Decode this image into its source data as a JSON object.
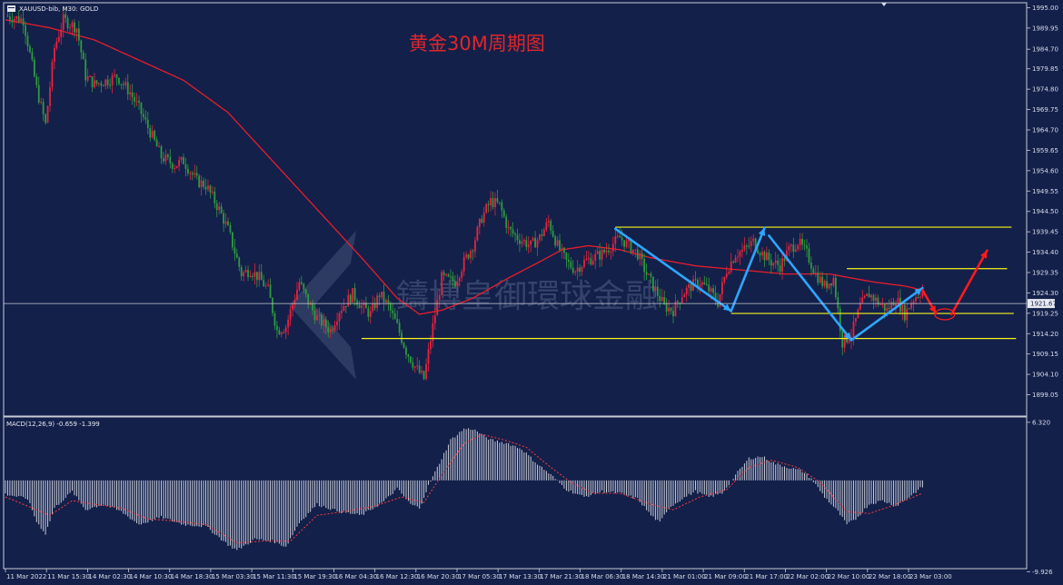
{
  "header": {
    "symbol_line": "XAUUSD-bib, M30: GOLD"
  },
  "annotation": {
    "title_text": "黄金30M周期图"
  },
  "watermark": {
    "text": "鑄博皇御環球金融"
  },
  "colors": {
    "background": "#13204a",
    "frame": "#c9ccd6",
    "bull_candle": "#e8233c",
    "bear_candle": "#2f9a3f",
    "moving_average": "#e81d2a",
    "support_resistance": "#f7f31b",
    "wave_arrow": "#2ea6ff",
    "forecast_arrow": "#ff1a1a",
    "macd_hist": "#c9ccd6",
    "macd_signal": "#ff3a3a"
  },
  "chart_data": [
    {
      "type": "line",
      "title": "",
      "price_scale": {
        "ylim": [
          1894.0,
          1996.0
        ],
        "ticks": [
          "1995.00",
          "1989.95",
          "1984.70",
          "1979.85",
          "1974.80",
          "1969.75",
          "1964.70",
          "1959.65",
          "1954.60",
          "1949.55",
          "1944.50",
          "1939.45",
          "1934.40",
          "1929.35",
          "1924.30",
          "1919.25",
          "1914.20",
          "1909.15",
          "1904.10",
          "1899.05"
        ],
        "tick_values": [
          1995.0,
          1989.95,
          1984.7,
          1979.85,
          1974.8,
          1969.75,
          1964.7,
          1959.65,
          1954.6,
          1949.55,
          1944.5,
          1939.45,
          1934.4,
          1929.35,
          1924.3,
          1919.25,
          1914.2,
          1909.15,
          1904.1,
          1899.05
        ],
        "current_price_label": "1921.67",
        "current_price": 1921.67
      },
      "time_scale": {
        "labels": [
          "11 Mar 2022",
          "11 Mar 15:30",
          "14 Mar 02:30",
          "14 Mar 10:30",
          "14 Mar 18:30",
          "15 Mar 03:30",
          "15 Mar 11:30",
          "15 Mar 19:30",
          "16 Mar 04:30",
          "16 Mar 12:30",
          "16 Mar 20:30",
          "17 Mar 05:30",
          "17 Mar 13:30",
          "17 Mar 21:30",
          "18 Mar 06:30",
          "18 Mar 14:30",
          "21 Mar 01:00",
          "21 Mar 09:00",
          "21 Mar 17:00",
          "22 Mar 02:00",
          "22 Mar 10:00",
          "22 Mar 18:00",
          "23 Mar 03:00"
        ],
        "bar_count": 222
      },
      "price_path_keypoints": [
        [
          0,
          1993
        ],
        [
          8,
          1992
        ],
        [
          14,
          1975
        ],
        [
          18,
          1966
        ],
        [
          22,
          1985
        ],
        [
          26,
          1992
        ],
        [
          32,
          1990
        ],
        [
          36,
          1978
        ],
        [
          40,
          1976
        ],
        [
          46,
          1977
        ],
        [
          50,
          1978
        ],
        [
          56,
          1974
        ],
        [
          60,
          1970
        ],
        [
          66,
          1963
        ],
        [
          70,
          1958
        ],
        [
          76,
          1956
        ],
        [
          80,
          1957
        ],
        [
          86,
          1952
        ],
        [
          90,
          1951
        ],
        [
          96,
          1945
        ],
        [
          100,
          1940
        ],
        [
          106,
          1929
        ],
        [
          110,
          1930
        ],
        [
          114,
          1928
        ],
        [
          118,
          1925
        ],
        [
          122,
          1915
        ],
        [
          126,
          1916
        ],
        [
          132,
          1927
        ],
        [
          136,
          1922
        ],
        [
          140,
          1918
        ],
        [
          146,
          1915
        ],
        [
          150,
          1920
        ],
        [
          156,
          1924
        ],
        [
          160,
          1921
        ],
        [
          164,
          1919
        ],
        [
          168,
          1924
        ],
        [
          172,
          1921
        ],
        [
          176,
          1916
        ],
        [
          180,
          1910
        ],
        [
          184,
          1906
        ],
        [
          188,
          1903
        ],
        [
          192,
          1916
        ],
        [
          196,
          1928
        ],
        [
          202,
          1927
        ],
        [
          206,
          1932
        ],
        [
          210,
          1936
        ],
        [
          214,
          1943
        ],
        [
          218,
          1947
        ],
        [
          222,
          1946
        ],
        [
          226,
          1940
        ],
        [
          230,
          1938
        ],
        [
          236,
          1936
        ],
        [
          240,
          1938
        ],
        [
          244,
          1942
        ],
        [
          248,
          1936
        ],
        [
          252,
          1932
        ],
        [
          256,
          1930
        ],
        [
          260,
          1932
        ],
        [
          264,
          1933
        ],
        [
          268,
          1934
        ],
        [
          272,
          1936
        ],
        [
          276,
          1938
        ],
        [
          280,
          1936
        ],
        [
          284,
          1934
        ],
        [
          288,
          1929
        ],
        [
          292,
          1925
        ],
        [
          296,
          1921
        ],
        [
          300,
          1920
        ],
        [
          304,
          1924
        ],
        [
          308,
          1926
        ],
        [
          312,
          1927
        ],
        [
          316,
          1925
        ],
        [
          320,
          1922
        ],
        [
          324,
          1930
        ],
        [
          328,
          1934
        ],
        [
          332,
          1935
        ],
        [
          336,
          1937
        ],
        [
          340,
          1934
        ],
        [
          344,
          1932
        ],
        [
          348,
          1931
        ],
        [
          352,
          1935
        ],
        [
          356,
          1937
        ],
        [
          360,
          1934
        ],
        [
          364,
          1929
        ],
        [
          368,
          1926
        ],
        [
          372,
          1928
        ],
        [
          376,
          1912
        ],
        [
          380,
          1914
        ],
        [
          384,
          1921
        ],
        [
          388,
          1924
        ],
        [
          392,
          1922
        ],
        [
          396,
          1920
        ],
        [
          400,
          1923
        ],
        [
          404,
          1919
        ],
        [
          408,
          1923
        ],
        [
          412,
          1925
        ]
      ],
      "moving_average_keypoints": [
        [
          0,
          1992
        ],
        [
          20,
          1990
        ],
        [
          40,
          1987
        ],
        [
          60,
          1982
        ],
        [
          80,
          1977
        ],
        [
          100,
          1969
        ],
        [
          120,
          1957
        ],
        [
          140,
          1945
        ],
        [
          160,
          1933
        ],
        [
          176,
          1923
        ],
        [
          186,
          1919
        ],
        [
          196,
          1920
        ],
        [
          210,
          1923
        ],
        [
          226,
          1928
        ],
        [
          240,
          1932
        ],
        [
          250,
          1935
        ],
        [
          262,
          1936
        ],
        [
          276,
          1935
        ],
        [
          290,
          1933
        ],
        [
          310,
          1931
        ],
        [
          330,
          1930
        ],
        [
          350,
          1929
        ],
        [
          370,
          1929
        ],
        [
          390,
          1927
        ],
        [
          404,
          1926
        ],
        [
          412,
          1925
        ]
      ],
      "horizontal_levels": [
        {
          "price": 1940.6,
          "from_bar": 274,
          "to_bar": 452
        },
        {
          "price": 1930.3,
          "from_bar": 378,
          "to_bar": 450
        },
        {
          "price": 1919.2,
          "from_bar": 326,
          "to_bar": 453
        },
        {
          "price": 1913.0,
          "from_bar": 160,
          "to_bar": 454
        }
      ],
      "wave_arrows": [
        {
          "from": [
            274,
            1940.2
          ],
          "to": [
            326,
            1919.8
          ]
        },
        {
          "from": [
            326,
            1919.8
          ],
          "to": [
            341,
            1940.4
          ]
        },
        {
          "from": [
            343,
            1938.5
          ],
          "to": [
            380,
            1912.6
          ]
        },
        {
          "from": [
            380,
            1912.6
          ],
          "to": [
            412,
            1925.5
          ]
        }
      ],
      "forecast_arrows": [
        {
          "from": [
            412,
            1925.0
          ],
          "to": [
            418,
            1919.2
          ]
        },
        {
          "from": [
            425,
            1919.0
          ],
          "to": [
            441,
            1934.8
          ]
        }
      ],
      "forecast_marker": {
        "bar": 422,
        "price": 1919.0
      }
    },
    {
      "type": "bar",
      "title": "",
      "indicator_label": "MACD(12,26,9) -0.659 -1.399",
      "ylim": [
        -9.5,
        6.8
      ],
      "ticks": [
        "6.320",
        "-9.926"
      ],
      "tick_values": [
        6.32,
        -9.926
      ],
      "histogram_keypoints": [
        [
          0,
          -1.5
        ],
        [
          10,
          -2.0
        ],
        [
          14,
          -4.5
        ],
        [
          18,
          -5.8
        ],
        [
          22,
          -3.0
        ],
        [
          30,
          -1.2
        ],
        [
          36,
          -3.2
        ],
        [
          44,
          -2.6
        ],
        [
          52,
          -3.4
        ],
        [
          60,
          -4.8
        ],
        [
          70,
          -4.0
        ],
        [
          80,
          -4.8
        ],
        [
          90,
          -5.0
        ],
        [
          100,
          -7.0
        ],
        [
          104,
          -7.6
        ],
        [
          112,
          -6.4
        ],
        [
          120,
          -6.6
        ],
        [
          126,
          -7.2
        ],
        [
          132,
          -4.6
        ],
        [
          140,
          -2.6
        ],
        [
          150,
          -3.4
        ],
        [
          160,
          -3.8
        ],
        [
          170,
          -2.3
        ],
        [
          176,
          -0.9
        ],
        [
          182,
          -2.6
        ],
        [
          186,
          -3.0
        ],
        [
          190,
          -0.6
        ],
        [
          196,
          2.4
        ],
        [
          200,
          4.4
        ],
        [
          206,
          5.6
        ],
        [
          210,
          5.6
        ],
        [
          218,
          4.4
        ],
        [
          226,
          4.0
        ],
        [
          232,
          3.4
        ],
        [
          238,
          2.0
        ],
        [
          246,
          0.4
        ],
        [
          252,
          -1.0
        ],
        [
          260,
          -1.8
        ],
        [
          268,
          -1.2
        ],
        [
          276,
          -1.4
        ],
        [
          284,
          -2.0
        ],
        [
          290,
          -3.8
        ],
        [
          294,
          -4.6
        ],
        [
          298,
          -3.0
        ],
        [
          304,
          -2.0
        ],
        [
          310,
          -1.2
        ],
        [
          316,
          -1.8
        ],
        [
          322,
          -1.4
        ],
        [
          328,
          0.6
        ],
        [
          334,
          2.4
        ],
        [
          340,
          2.6
        ],
        [
          346,
          1.8
        ],
        [
          352,
          1.4
        ],
        [
          358,
          1.0
        ],
        [
          362,
          0.2
        ],
        [
          368,
          -1.8
        ],
        [
          374,
          -3.4
        ],
        [
          378,
          -4.8
        ],
        [
          382,
          -4.2
        ],
        [
          388,
          -2.6
        ],
        [
          394,
          -2.2
        ],
        [
          400,
          -2.8
        ],
        [
          406,
          -1.8
        ],
        [
          412,
          -0.7
        ]
      ],
      "signal_keypoints": [
        [
          0,
          -1.8
        ],
        [
          14,
          -3.2
        ],
        [
          20,
          -3.8
        ],
        [
          30,
          -2.2
        ],
        [
          40,
          -2.6
        ],
        [
          52,
          -3.0
        ],
        [
          64,
          -4.2
        ],
        [
          76,
          -4.4
        ],
        [
          90,
          -4.8
        ],
        [
          104,
          -6.8
        ],
        [
          116,
          -6.6
        ],
        [
          128,
          -6.6
        ],
        [
          140,
          -3.8
        ],
        [
          152,
          -3.4
        ],
        [
          166,
          -2.8
        ],
        [
          178,
          -1.8
        ],
        [
          188,
          -2.4
        ],
        [
          196,
          0.6
        ],
        [
          206,
          4.0
        ],
        [
          214,
          5.0
        ],
        [
          224,
          4.4
        ],
        [
          234,
          3.6
        ],
        [
          244,
          1.6
        ],
        [
          254,
          -0.2
        ],
        [
          264,
          -1.4
        ],
        [
          276,
          -1.4
        ],
        [
          290,
          -2.6
        ],
        [
          300,
          -3.2
        ],
        [
          312,
          -1.8
        ],
        [
          324,
          -1.0
        ],
        [
          334,
          1.4
        ],
        [
          344,
          2.2
        ],
        [
          356,
          1.4
        ],
        [
          366,
          -0.2
        ],
        [
          378,
          -3.4
        ],
        [
          388,
          -3.6
        ],
        [
          398,
          -2.8
        ],
        [
          412,
          -1.4
        ]
      ]
    }
  ]
}
